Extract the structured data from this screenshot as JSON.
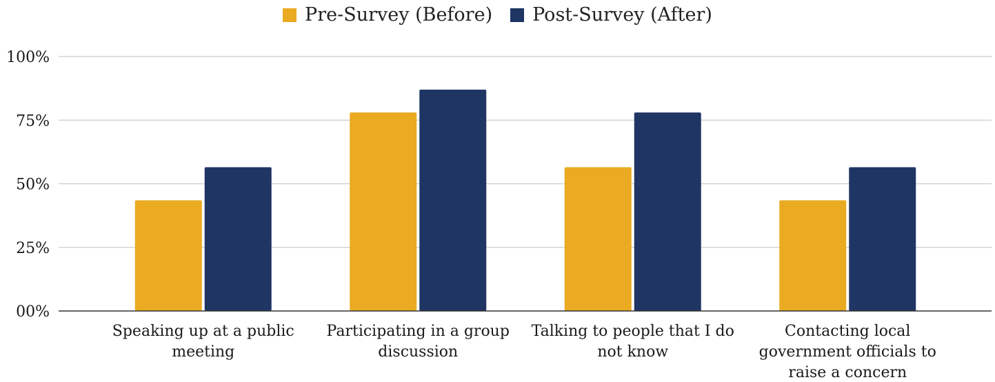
{
  "chart_data": {
    "type": "bar",
    "categories": [
      [
        "Speaking up at a public",
        "meeting"
      ],
      [
        "Participating in a group",
        "discussion"
      ],
      [
        "Talking to people that I do",
        "not know"
      ],
      [
        "Contacting local",
        "government officials to",
        "raise a concern"
      ]
    ],
    "series": [
      {
        "name": "Pre-Survey (Before)",
        "color": "#EAAA22",
        "values": [
          43.5,
          78,
          56.5,
          43.5
        ]
      },
      {
        "name": "Post-Survey (After)",
        "color": "#1F3564",
        "values": [
          56.5,
          87,
          78,
          56.5
        ]
      }
    ],
    "y_ticks": [
      "00%",
      "25%",
      "50%",
      "75%",
      "100%"
    ],
    "ylim": [
      0,
      100
    ],
    "grid": true,
    "legend_position": "top-center"
  }
}
